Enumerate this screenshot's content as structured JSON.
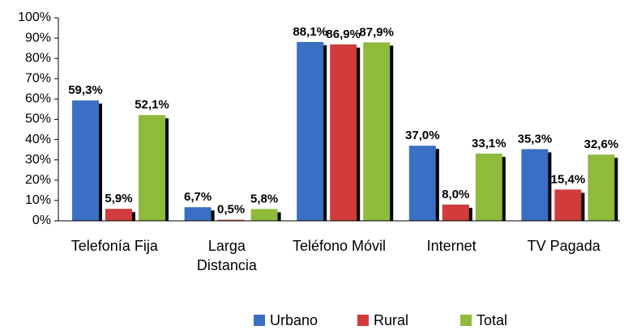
{
  "chart_data": {
    "type": "bar",
    "categories": [
      "Telefonía Fija",
      "Larga Distancia",
      "Teléfono Móvil",
      "Internet",
      "TV Pagada"
    ],
    "series": [
      {
        "name": "Urbano",
        "color": "#3a6fc4",
        "values": [
          59.3,
          6.7,
          88.1,
          37.0,
          35.3
        ],
        "value_labels": [
          "59,3%",
          "6,7%",
          "88,1%",
          "37,0%",
          "35,3%"
        ]
      },
      {
        "name": "Rural",
        "color": "#d13b3b",
        "values": [
          5.9,
          0.5,
          86.9,
          8.0,
          15.4
        ],
        "value_labels": [
          "5,9%",
          "0,5%",
          "86,9%",
          "8,0%",
          "15,4%"
        ]
      },
      {
        "name": "Total",
        "color": "#8fba3c",
        "values": [
          52.1,
          5.8,
          87.9,
          33.1,
          32.6
        ],
        "value_labels": [
          "52,1%",
          "5,8%",
          "87,9%",
          "33,1%",
          "32,6%"
        ]
      }
    ],
    "ylim": [
      0,
      100
    ],
    "yticks": [
      {
        "value": 0,
        "label": "0%"
      },
      {
        "value": 10,
        "label": "10%"
      },
      {
        "value": 20,
        "label": "20%"
      },
      {
        "value": 30,
        "label": "30%"
      },
      {
        "value": 40,
        "label": "40%"
      },
      {
        "value": 50,
        "label": "50%"
      },
      {
        "value": 60,
        "label": "60%"
      },
      {
        "value": 70,
        "label": "70%"
      },
      {
        "value": 80,
        "label": "80%"
      },
      {
        "value": 90,
        "label": "90%"
      },
      {
        "value": 100,
        "label": "100%"
      }
    ],
    "legend": "bottom"
  }
}
